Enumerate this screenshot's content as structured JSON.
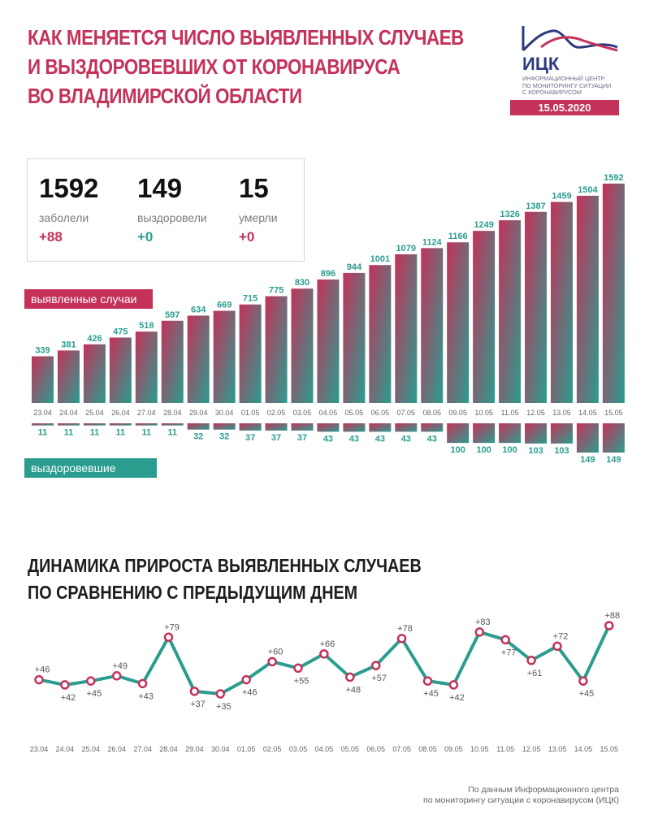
{
  "header": {
    "title_lines": [
      "КАК МЕНЯЕТСЯ ЧИСЛО ВЫЯВЛЕННЫХ СЛУЧАЕВ",
      "И ВЫЗДОРОВЕВШИХ ОТ КОРОНАВИРУСА",
      "ВО ВЛАДИМИРСКОЙ ОБЛАСТИ"
    ],
    "logo_abbr": "ИЦК",
    "logo_sub_lines": [
      "ИНФОРМАЦИОННЫЙ ЦЕНТР",
      "ПО МОНИТОРИНГУ СИТУАЦИИ",
      "С КОРОНАВИРУСОМ"
    ],
    "date": "15.05.2020"
  },
  "stats": [
    {
      "value": "1592",
      "label": "заболели",
      "delta": "+88"
    },
    {
      "value": "149",
      "label": "выздоровели",
      "delta": "+0"
    },
    {
      "value": "15",
      "label": "умерли",
      "delta": "+0"
    }
  ],
  "labels": {
    "cases": "выявленные случаи",
    "recovered": "выздоровевшие"
  },
  "section2": {
    "title_lines": [
      "ДИНАМИКА ПРИРОСТА ВЫЯВЛЕННЫХ СЛУЧАЕВ",
      "ПО СРАВНЕНИЮ С ПРЕДЫДУЩИМ ДНЕМ"
    ]
  },
  "footer": {
    "lines": [
      "По данным Информационного центра",
      "по мониторингу ситуации с коронавирусом (ИЦК)"
    ]
  },
  "colors": {
    "accent": "#c4325a",
    "teal": "#2a9d8f",
    "navy": "#2d3a7c"
  },
  "chart_data": [
    {
      "type": "bar",
      "categories": [
        "23.04",
        "24.04",
        "25.04",
        "26.04",
        "27.04",
        "28.04",
        "29.04",
        "30.04",
        "01.05",
        "02.05",
        "03.05",
        "04.05",
        "05.05",
        "06.05",
        "07.05",
        "08.05",
        "09.05",
        "10.05",
        "11.05",
        "12.05",
        "13.05",
        "14.05",
        "15.05"
      ],
      "series": [
        {
          "name": "выявленные случаи",
          "values": [
            339,
            381,
            426,
            475,
            518,
            597,
            634,
            669,
            715,
            775,
            830,
            896,
            944,
            1001,
            1079,
            1124,
            1166,
            1249,
            1326,
            1387,
            1459,
            1504,
            1592
          ]
        },
        {
          "name": "выздоровевшие",
          "values": [
            11,
            11,
            11,
            11,
            11,
            11,
            32,
            32,
            37,
            37,
            37,
            43,
            43,
            43,
            43,
            43,
            100,
            100,
            100,
            103,
            103,
            149,
            149
          ]
        }
      ]
    },
    {
      "type": "line",
      "title": "ДИНАМИКА ПРИРОСТА ВЫЯВЛЕННЫХ СЛУЧАЕВ ПО СРАВНЕНИЮ С ПРЕДЫДУЩИМ ДНЕМ",
      "x": [
        "23.04",
        "24.04",
        "25.04",
        "26.04",
        "27.04",
        "28.04",
        "29.04",
        "30.04",
        "01.05",
        "02.05",
        "03.05",
        "04.05",
        "05.05",
        "06.05",
        "07.05",
        "08.05",
        "09.05",
        "10.05",
        "11.05",
        "12.05",
        "13.05",
        "14.05",
        "15.05"
      ],
      "values": [
        46,
        42,
        45,
        49,
        43,
        79,
        37,
        35,
        46,
        60,
        55,
        66,
        48,
        57,
        78,
        45,
        42,
        83,
        77,
        61,
        72,
        45,
        88
      ],
      "labels": [
        "+46",
        "+42",
        "+45",
        "+49",
        "+43",
        "+79",
        "+37",
        "+35",
        "+46",
        "+60",
        "+55",
        "+66",
        "+48",
        "+57",
        "+78",
        "+45",
        "+42",
        "+83",
        "+77",
        "+61",
        "+72",
        "+45",
        "+88"
      ]
    }
  ]
}
